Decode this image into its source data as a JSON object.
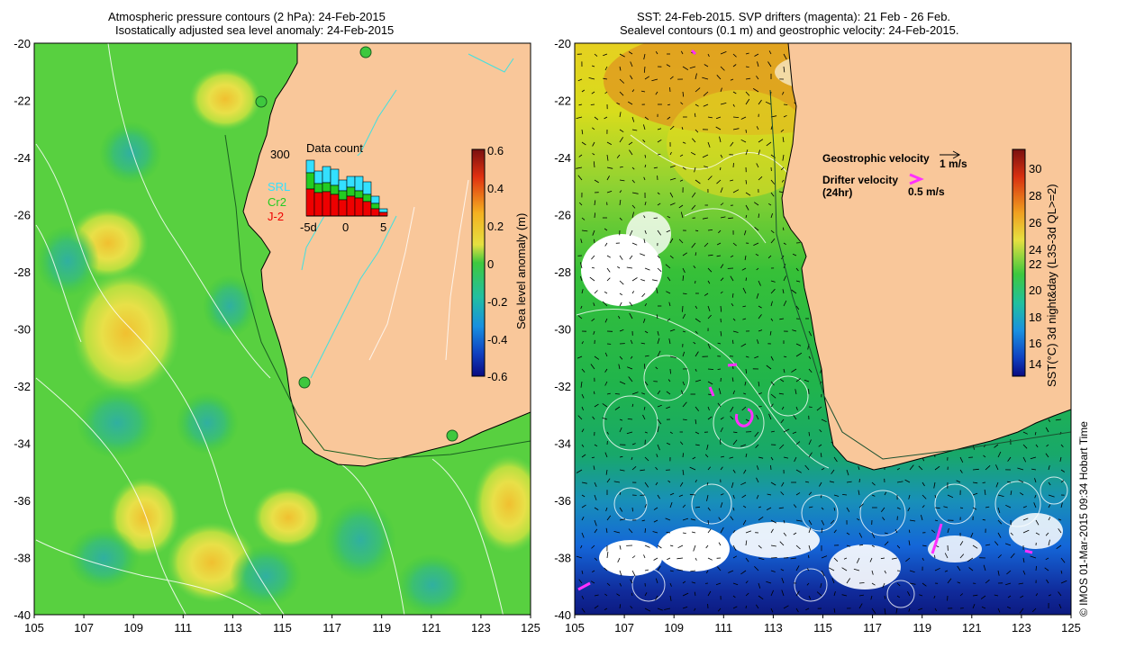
{
  "left_panel": {
    "title_line1": "Atmospheric pressure contours (2 hPa): 24-Feb-2015",
    "title_line2": "Isostatically adjusted sea level anomaly: 24-Feb-2015",
    "colorbar_label": "Sea level anomaly (m)",
    "colorbar_ticks": [
      "0.6",
      "0.4",
      "0.2",
      "0",
      "-0.2",
      "-0.4",
      "-0.6"
    ],
    "inset": {
      "title": "Data count",
      "ymax_label": "300",
      "legend": [
        {
          "name": "SRL",
          "color": "#33e0ff"
        },
        {
          "name": "Cr2",
          "color": "#22cc22"
        },
        {
          "name": "J-2",
          "color": "#ee0000"
        }
      ],
      "x_ticks": [
        "-5d",
        "0",
        "5"
      ]
    }
  },
  "right_panel": {
    "title_line1": "SST: 24-Feb-2015. SVP drifters (magenta): 21 Feb - 26 Feb.",
    "title_line2": "Sealevel contours (0.1 m) and geostrophic velocity: 24-Feb-2015.",
    "colorbar_label": "SST(°C) 3d night&day (L3S-3d QL>=2)",
    "colorbar_ticks": [
      "30",
      "28",
      "26",
      "24",
      "22",
      "20",
      "18",
      "16",
      "14"
    ],
    "geo_label": "Geostrophic velocity",
    "geo_scale": "1 m/s",
    "drifter_label_1": "Drifter velocity",
    "drifter_label_2": "(24hr)",
    "drifter_scale": "0.5 m/s"
  },
  "axes": {
    "x_ticks": [
      "105",
      "107",
      "109",
      "111",
      "113",
      "115",
      "117",
      "119",
      "121",
      "123",
      "125"
    ],
    "y_ticks": [
      "-20",
      "-22",
      "-24",
      "-26",
      "-28",
      "-30",
      "-32",
      "-34",
      "-36",
      "-38",
      "-40"
    ]
  },
  "credit": "© IMOS 01-Mar-2015 09:34 Hobart Time",
  "colors": {
    "land": "#f9c79a",
    "sea_green": "#3ec83e",
    "coast": "#000000"
  }
}
